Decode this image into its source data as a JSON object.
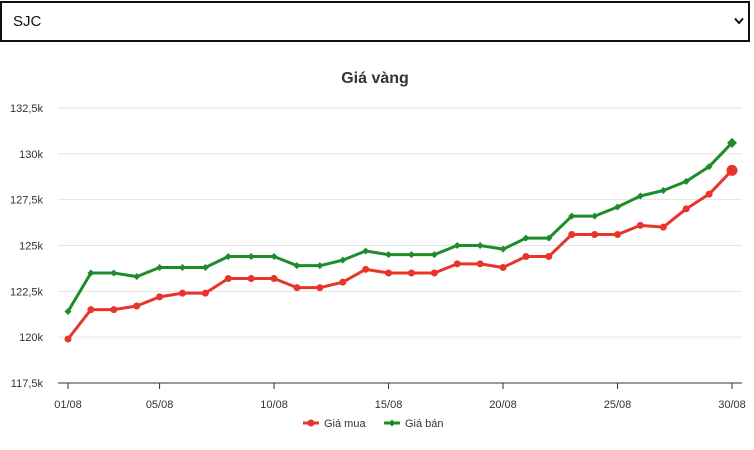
{
  "selector": {
    "value": "SJC"
  },
  "chart_data": {
    "type": "line",
    "title": "Giá vàng",
    "x": [
      "01/08",
      "02/08",
      "03/08",
      "04/08",
      "05/08",
      "06/08",
      "07/08",
      "08/08",
      "09/08",
      "10/08",
      "11/08",
      "12/08",
      "13/08",
      "14/08",
      "15/08",
      "16/08",
      "17/08",
      "18/08",
      "19/08",
      "20/08",
      "21/08",
      "22/08",
      "23/08",
      "24/08",
      "25/08",
      "26/08",
      "27/08",
      "28/08",
      "29/08",
      "30/08"
    ],
    "x_tick_labels": [
      "01/08",
      "05/08",
      "10/08",
      "15/08",
      "20/08",
      "25/08",
      "30/08"
    ],
    "y_tick_labels": [
      "117,5k",
      "120k",
      "122,5k",
      "125k",
      "127,5k",
      "130k",
      "132,5k"
    ],
    "ylim": [
      117500,
      132500
    ],
    "yticks": [
      117500,
      120000,
      122500,
      125000,
      127500,
      130000,
      132500
    ],
    "grid": true,
    "legend_position": "bottom",
    "series": [
      {
        "name": "Giá mua",
        "color": "#e8352b",
        "marker": "circle",
        "values": [
          119900,
          121500,
          121500,
          121700,
          122200,
          122400,
          122400,
          123200,
          123200,
          123200,
          122700,
          122700,
          123000,
          123700,
          123500,
          123500,
          123500,
          124000,
          124000,
          123800,
          124400,
          124400,
          125600,
          125600,
          125600,
          126100,
          126000,
          127000,
          127800,
          129100
        ]
      },
      {
        "name": "Giá bán",
        "color": "#1e8c2a",
        "marker": "diamond",
        "values": [
          121400,
          123500,
          123500,
          123300,
          123800,
          123800,
          123800,
          124400,
          124400,
          124400,
          123900,
          123900,
          124200,
          124700,
          124500,
          124500,
          124500,
          125000,
          125000,
          124800,
          125400,
          125400,
          126600,
          126600,
          127100,
          127700,
          128000,
          128500,
          129300,
          130600
        ]
      }
    ]
  }
}
